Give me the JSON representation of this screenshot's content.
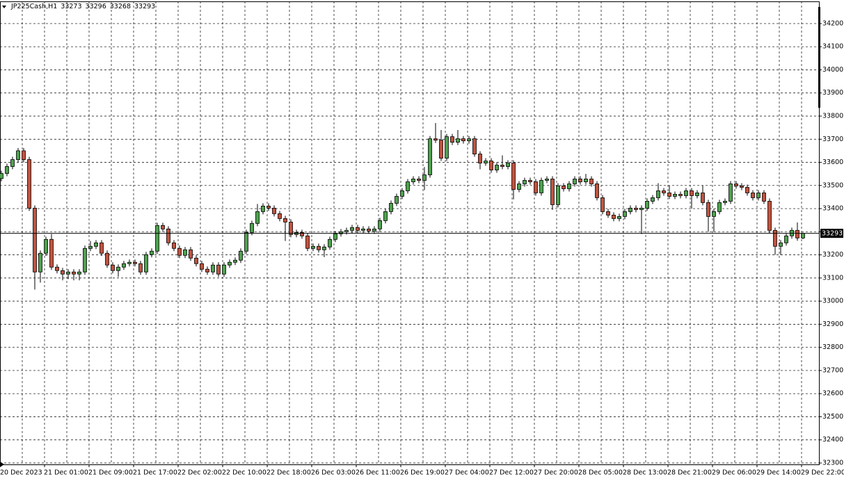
{
  "chart_data": {
    "type": "candlestick",
    "symbol": "JP225Cash,H1",
    "categories": [
      "20 Dec 2023",
      null,
      null,
      null,
      null,
      null,
      null,
      null,
      "21 Dec 01:00",
      null,
      null,
      null,
      null,
      null,
      null,
      null,
      "21 Dec 09:00",
      null,
      null,
      null,
      null,
      null,
      null,
      null,
      "21 Dec 17:00",
      null,
      null,
      null,
      null,
      null,
      null,
      null,
      "22 Dec 02:00",
      null,
      null,
      null,
      null,
      null,
      null,
      null,
      "22 Dec 10:00",
      null,
      null,
      null,
      null,
      null,
      null,
      null,
      "22 Dec 18:00",
      null,
      null,
      null,
      null,
      null,
      null,
      null,
      "26 Dec 03:00",
      null,
      null,
      null,
      null,
      null,
      null,
      null,
      "26 Dec 11:00",
      null,
      null,
      null,
      null,
      null,
      null,
      null,
      "26 Dec 19:00",
      null,
      null,
      null,
      null,
      null,
      null,
      null,
      "27 Dec 04:00",
      null,
      null,
      null,
      null,
      null,
      null,
      null,
      "27 Dec 12:00",
      null,
      null,
      null,
      null,
      null,
      null,
      null,
      "27 Dec 20:00",
      null,
      null,
      null,
      null,
      null,
      null,
      null,
      "28 Dec 05:00",
      null,
      null,
      null,
      null,
      null,
      null,
      null,
      "28 Dec 13:00",
      null,
      null,
      null,
      null,
      null,
      null,
      null,
      "28 Dec 21:00",
      null,
      null,
      null,
      null,
      null,
      null,
      null,
      "29 Dec 06:00",
      null,
      null,
      null,
      null,
      null,
      null,
      null,
      "29 Dec 14:00",
      null,
      null,
      null,
      null,
      null,
      null,
      null,
      "29 Dec 22:00"
    ],
    "open": [
      33530,
      33552,
      33582,
      33612,
      33650,
      33612,
      33402,
      33126,
      33207,
      33267,
      33147,
      33132,
      33117,
      33126,
      33117,
      33126,
      33228,
      33237,
      33252,
      33207,
      33156,
      33132,
      33147,
      33162,
      33168,
      33162,
      33126,
      33201,
      33216,
      33327,
      33312,
      33252,
      33228,
      33198,
      33222,
      33186,
      33162,
      33138,
      33126,
      33156,
      33117,
      33156,
      33168,
      33177,
      33216,
      33297,
      33336,
      33387,
      33411,
      33402,
      33378,
      33357,
      33342,
      33288,
      33297,
      33282,
      33228,
      33237,
      33222,
      33234,
      33267,
      33291,
      33300,
      33306,
      33318,
      33306,
      33312,
      33303,
      33312,
      33348,
      33387,
      33423,
      33453,
      33477,
      33516,
      33528,
      33522,
      33546,
      33702,
      33696,
      33618,
      33711,
      33687,
      33702,
      33693,
      33702,
      33636,
      33597,
      33606,
      33567,
      33588,
      33582,
      33597,
      33483,
      33507,
      33522,
      33516,
      33468,
      33522,
      33528,
      33417,
      33498,
      33486,
      33507,
      33528,
      33516,
      33528,
      33507,
      33447,
      33387,
      33372,
      33357,
      33366,
      33387,
      33402,
      33396,
      33402,
      33432,
      33447,
      33477,
      33468,
      33453,
      33462,
      33456,
      33477,
      33456,
      33468,
      33426,
      33366,
      33387,
      33426,
      33432,
      33507,
      33498,
      33492,
      33468,
      33447,
      33468,
      33432,
      33306,
      33237,
      33252,
      33282,
      33306,
      33273
    ],
    "high": [
      33564,
      33594,
      33624,
      33662,
      33662,
      33624,
      33414,
      33219,
      33279,
      33290,
      33159,
      33144,
      33138,
      33138,
      33138,
      33240,
      33260,
      33264,
      33264,
      33219,
      33168,
      33159,
      33174,
      33180,
      33180,
      33174,
      33213,
      33228,
      33339,
      33339,
      33324,
      33264,
      33240,
      33234,
      33234,
      33198,
      33174,
      33150,
      33168,
      33168,
      33168,
      33180,
      33189,
      33228,
      33309,
      33348,
      33420,
      33423,
      33423,
      33414,
      33390,
      33369,
      33354,
      33309,
      33309,
      33294,
      33249,
      33249,
      33246,
      33279,
      33303,
      33312,
      33318,
      33330,
      33330,
      33324,
      33324,
      33324,
      33360,
      33399,
      33435,
      33465,
      33489,
      33528,
      33540,
      33540,
      33580,
      33714,
      33770,
      33740,
      33723,
      33723,
      33740,
      33714,
      33714,
      33714,
      33648,
      33618,
      33618,
      33600,
      33630,
      33609,
      33609,
      33519,
      33534,
      33534,
      33528,
      33534,
      33540,
      33540,
      33510,
      33510,
      33519,
      33540,
      33540,
      33550,
      33540,
      33519,
      33459,
      33399,
      33384,
      33378,
      33399,
      33414,
      33414,
      33414,
      33444,
      33459,
      33510,
      33489,
      33500,
      33474,
      33474,
      33489,
      33489,
      33480,
      33500,
      33438,
      33399,
      33438,
      33444,
      33519,
      33519,
      33510,
      33504,
      33480,
      33480,
      33480,
      33444,
      33318,
      33264,
      33294,
      33318,
      33340,
      33296
    ],
    "low": [
      33518,
      33540,
      33570,
      33600,
      33600,
      33390,
      33050,
      33080,
      33195,
      33135,
      33120,
      33090,
      33095,
      33090,
      33090,
      33114,
      33216,
      33225,
      33195,
      33144,
      33120,
      33105,
      33135,
      33150,
      33150,
      33114,
      33114,
      33189,
      33204,
      33300,
      33240,
      33216,
      33186,
      33186,
      33174,
      33150,
      33126,
      33114,
      33114,
      33105,
      33105,
      33144,
      33156,
      33165,
      33204,
      33285,
      33324,
      33375,
      33390,
      33366,
      33345,
      33260,
      33276,
      33276,
      33270,
      33216,
      33216,
      33210,
      33190,
      33222,
      33255,
      33279,
      33288,
      33294,
      33294,
      33294,
      33291,
      33291,
      33300,
      33336,
      33375,
      33411,
      33441,
      33465,
      33504,
      33510,
      33480,
      33534,
      33684,
      33606,
      33606,
      33675,
      33675,
      33681,
      33681,
      33624,
      33570,
      33585,
      33555,
      33555,
      33570,
      33570,
      33440,
      33471,
      33495,
      33504,
      33456,
      33456,
      33510,
      33395,
      33405,
      33474,
      33474,
      33495,
      33504,
      33504,
      33495,
      33435,
      33375,
      33360,
      33345,
      33345,
      33354,
      33375,
      33384,
      33290,
      33390,
      33420,
      33435,
      33456,
      33441,
      33441,
      33444,
      33444,
      33400,
      33444,
      33414,
      33300,
      33300,
      33375,
      33414,
      33420,
      33486,
      33480,
      33456,
      33435,
      33435,
      33420,
      33294,
      33200,
      33200,
      33240,
      33270,
      33261,
      33268
    ],
    "close": [
      33552,
      33582,
      33612,
      33650,
      33612,
      33402,
      33126,
      33207,
      33267,
      33147,
      33132,
      33117,
      33126,
      33117,
      33126,
      33228,
      33237,
      33252,
      33207,
      33156,
      33132,
      33147,
      33162,
      33168,
      33162,
      33126,
      33201,
      33216,
      33327,
      33312,
      33252,
      33228,
      33198,
      33222,
      33186,
      33162,
      33138,
      33126,
      33156,
      33117,
      33156,
      33168,
      33177,
      33216,
      33297,
      33336,
      33387,
      33411,
      33402,
      33378,
      33357,
      33342,
      33288,
      33297,
      33282,
      33228,
      33237,
      33222,
      33234,
      33267,
      33291,
      33300,
      33306,
      33318,
      33306,
      33312,
      33303,
      33312,
      33348,
      33387,
      33423,
      33453,
      33477,
      33516,
      33528,
      33522,
      33546,
      33702,
      33696,
      33618,
      33711,
      33687,
      33702,
      33693,
      33702,
      33636,
      33597,
      33606,
      33567,
      33588,
      33582,
      33597,
      33483,
      33507,
      33522,
      33516,
      33468,
      33522,
      33528,
      33417,
      33498,
      33486,
      33507,
      33528,
      33516,
      33528,
      33507,
      33447,
      33387,
      33372,
      33357,
      33366,
      33387,
      33402,
      33396,
      33402,
      33432,
      33447,
      33477,
      33468,
      33453,
      33462,
      33456,
      33477,
      33456,
      33468,
      33426,
      33366,
      33387,
      33426,
      33432,
      33507,
      33498,
      33492,
      33468,
      33447,
      33468,
      33432,
      33306,
      33237,
      33252,
      33282,
      33306,
      33273,
      33293
    ],
    "up_color": "#4ea24e",
    "down_color": "#c0533f",
    "ylim": [
      32294,
      34296
    ],
    "yticks": [
      32300,
      32400,
      32500,
      32600,
      32700,
      32800,
      32900,
      33000,
      33100,
      33200,
      33300,
      33400,
      33500,
      33600,
      33700,
      33800,
      33900,
      34000,
      34100,
      34200
    ],
    "grid": true
  }
}
